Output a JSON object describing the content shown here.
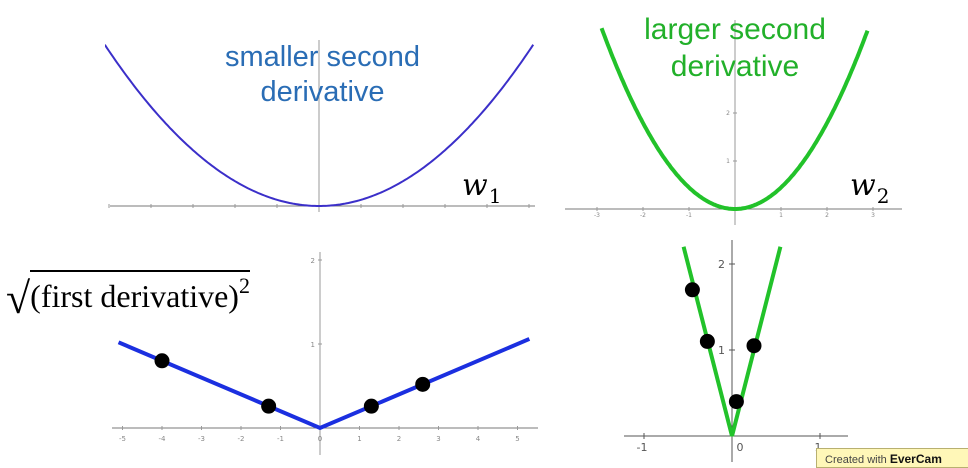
{
  "panels": {
    "top_left": {
      "label_line1": "smaller second",
      "label_line2": "derivative",
      "variable": "w",
      "variable_sub": "1",
      "curve_color": "#3b2fc9",
      "curve": "parabola",
      "x_range": [
        -5,
        5
      ]
    },
    "top_right": {
      "label_line1": "larger second",
      "label_line2": "derivative",
      "variable": "w",
      "variable_sub": "2",
      "curve_color": "#22c22a",
      "curve": "parabola",
      "x_ticks": [
        "-3",
        "-2",
        "-1",
        "0",
        "1",
        "2",
        "3"
      ],
      "y_ticks": [
        "1",
        "2"
      ]
    },
    "bottom_left": {
      "formula_text": "(first derivative)",
      "formula_exp": "2",
      "line_color": "#1b2fe0",
      "dot_color": "#000000",
      "x_ticks": [
        "-5",
        "-4",
        "-3",
        "-2",
        "-1",
        "0",
        "1",
        "2",
        "3",
        "4",
        "5"
      ],
      "y_ticks": [
        "1",
        "2"
      ],
      "points": [
        {
          "x": -4.0,
          "y": 0.8
        },
        {
          "x": -1.3,
          "y": 0.26
        },
        {
          "x": 1.3,
          "y": 0.26
        },
        {
          "x": 2.6,
          "y": 0.52
        }
      ]
    },
    "bottom_right": {
      "line_color": "#22c22a",
      "dot_color": "#000000",
      "x_ticks": [
        "-1",
        "0",
        "1"
      ],
      "y_ticks": [
        "1",
        "2"
      ],
      "points": [
        {
          "x": -0.45,
          "y": 1.7
        },
        {
          "x": -0.28,
          "y": 1.1
        },
        {
          "x": 0.25,
          "y": 1.05
        },
        {
          "x": 0.05,
          "y": 0.4
        }
      ]
    }
  },
  "watermark": {
    "prefix": "Created with",
    "brand": "EverCam"
  }
}
